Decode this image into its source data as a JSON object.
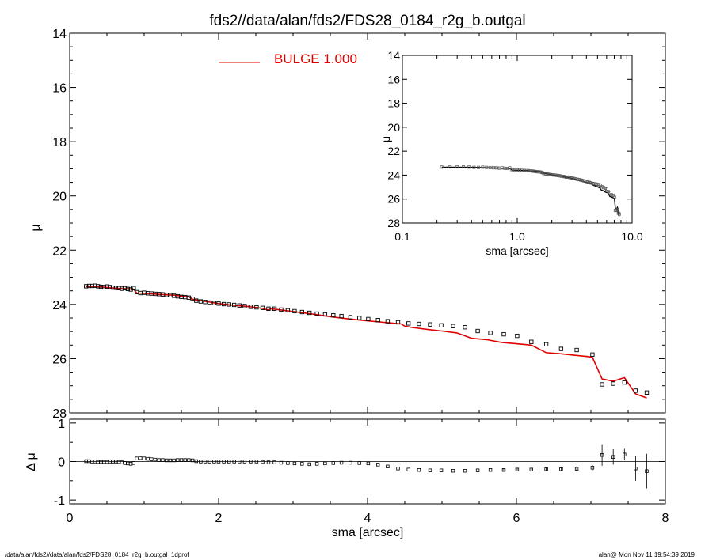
{
  "footer": {
    "left": "/data/alan/fds2//data/alan/fds2/FDS28_0184_r2g_b.outgal_1dprof",
    "right": "alan@  Mon Nov 11 19:54:39 2019"
  },
  "colors": {
    "model": "#e00000",
    "data": "#000000",
    "frame": "#000000"
  },
  "chart_data": [
    {
      "id": "main",
      "type": "scatter",
      "title": "fds2//data/alan/fds2/FDS28_0184_r2g_b.outgal",
      "xlabel": "",
      "ylabel": "μ",
      "xlim": [
        0,
        8
      ],
      "ylim": [
        28,
        14
      ],
      "y_inverted": true,
      "yticks": [
        14,
        16,
        18,
        20,
        22,
        24,
        26,
        28
      ],
      "legend": {
        "label": "BULGE  1.000",
        "placement": "top-center"
      },
      "series": [
        {
          "kind": "points",
          "x": [
            0.22,
            0.26,
            0.3,
            0.34,
            0.38,
            0.42,
            0.46,
            0.5,
            0.54,
            0.58,
            0.62,
            0.66,
            0.7,
            0.74,
            0.78,
            0.82,
            0.86,
            0.9,
            0.95,
            1.0,
            1.05,
            1.1,
            1.15,
            1.2,
            1.25,
            1.3,
            1.35,
            1.4,
            1.45,
            1.5,
            1.55,
            1.6,
            1.65,
            1.7,
            1.76,
            1.82,
            1.88,
            1.94,
            2.0,
            2.07,
            2.14,
            2.21,
            2.28,
            2.35,
            2.43,
            2.51,
            2.59,
            2.67,
            2.75,
            2.84,
            2.93,
            3.02,
            3.12,
            3.22,
            3.32,
            3.43,
            3.54,
            3.65,
            3.77,
            3.89,
            4.01,
            4.14,
            4.27,
            4.41,
            4.55,
            4.69,
            4.84,
            4.99,
            5.15,
            5.31,
            5.48,
            5.65,
            5.83,
            6.01,
            6.2,
            6.4,
            6.6,
            6.81,
            7.02,
            7.15,
            7.3,
            7.45,
            7.6,
            7.75
          ],
          "y": [
            23.33,
            23.32,
            23.32,
            23.31,
            23.33,
            23.35,
            23.36,
            23.34,
            23.36,
            23.38,
            23.39,
            23.4,
            23.42,
            23.4,
            23.43,
            23.45,
            23.4,
            23.55,
            23.58,
            23.57,
            23.59,
            23.6,
            23.61,
            23.62,
            23.63,
            23.65,
            23.66,
            23.68,
            23.7,
            23.72,
            23.73,
            23.75,
            23.79,
            23.86,
            23.89,
            23.91,
            23.93,
            23.95,
            23.97,
            23.99,
            24.0,
            24.02,
            24.04,
            24.06,
            24.09,
            24.11,
            24.13,
            24.16,
            24.16,
            24.19,
            24.22,
            24.25,
            24.28,
            24.31,
            24.34,
            24.37,
            24.4,
            24.43,
            24.47,
            24.5,
            24.54,
            24.58,
            24.62,
            24.66,
            24.7,
            24.72,
            24.74,
            24.77,
            24.8,
            24.84,
            24.98,
            25.05,
            25.1,
            25.16,
            25.38,
            25.47,
            25.64,
            25.68,
            25.85,
            26.95,
            26.92,
            26.88,
            27.18,
            27.25
          ],
          "yerr": [
            0.01,
            0.01,
            0.01,
            0.01,
            0.01,
            0.01,
            0.01,
            0.01,
            0.01,
            0.01,
            0.01,
            0.01,
            0.01,
            0.01,
            0.01,
            0.01,
            0.01,
            0.01,
            0.01,
            0.01,
            0.01,
            0.01,
            0.01,
            0.01,
            0.01,
            0.01,
            0.01,
            0.01,
            0.01,
            0.01,
            0.01,
            0.01,
            0.01,
            0.01,
            0.01,
            0.01,
            0.01,
            0.01,
            0.01,
            0.01,
            0.01,
            0.01,
            0.01,
            0.01,
            0.01,
            0.01,
            0.01,
            0.01,
            0.01,
            0.01,
            0.01,
            0.01,
            0.01,
            0.01,
            0.01,
            0.01,
            0.01,
            0.01,
            0.01,
            0.01,
            0.01,
            0.01,
            0.01,
            0.01,
            0.01,
            0.01,
            0.01,
            0.01,
            0.02,
            0.02,
            0.02,
            0.02,
            0.02,
            0.02,
            0.02,
            0.02,
            0.03,
            0.03,
            0.04,
            0.25,
            0.18,
            0.12,
            0.3,
            0.45
          ]
        },
        {
          "kind": "line",
          "name": "BULGE  1.000",
          "color": "#e00000",
          "x": [
            0.22,
            0.4,
            0.6,
            0.86,
            0.9,
            1.0,
            1.2,
            1.4,
            1.6,
            1.66,
            1.8,
            2.0,
            2.2,
            2.4,
            2.6,
            2.66,
            2.7,
            2.9,
            3.1,
            3.3,
            3.5,
            3.7,
            3.9,
            4.1,
            4.3,
            4.45,
            4.5,
            4.6,
            4.8,
            5.0,
            5.2,
            5.4,
            5.6,
            5.8,
            6.0,
            6.2,
            6.4,
            6.6,
            6.8,
            6.95,
            7.02,
            7.15,
            7.3,
            7.45,
            7.6,
            7.75
          ],
          "y": [
            23.34,
            23.35,
            23.4,
            23.44,
            23.58,
            23.59,
            23.63,
            23.66,
            23.72,
            23.82,
            23.88,
            23.97,
            24.03,
            24.08,
            24.15,
            24.21,
            24.16,
            24.23,
            24.3,
            24.37,
            24.45,
            24.52,
            24.58,
            24.63,
            24.68,
            24.72,
            24.8,
            24.85,
            24.92,
            24.98,
            25.05,
            25.25,
            25.3,
            25.4,
            25.45,
            25.5,
            25.78,
            25.82,
            25.88,
            25.92,
            25.95,
            26.75,
            26.83,
            26.7,
            27.3,
            27.45
          ]
        }
      ]
    },
    {
      "id": "residual",
      "type": "scatter",
      "xlabel": "sma [arcsec]",
      "ylabel": "Δ μ",
      "xlim": [
        0,
        8
      ],
      "ylim": [
        -1.1,
        1.1
      ],
      "xticks": [
        0,
        2,
        4,
        6,
        8
      ],
      "yticks": [
        -1,
        0,
        1
      ],
      "series": [
        {
          "kind": "points",
          "x": [
            0.22,
            0.26,
            0.3,
            0.34,
            0.38,
            0.42,
            0.46,
            0.5,
            0.54,
            0.58,
            0.62,
            0.66,
            0.7,
            0.74,
            0.78,
            0.82,
            0.86,
            0.9,
            0.95,
            1.0,
            1.05,
            1.1,
            1.15,
            1.2,
            1.25,
            1.3,
            1.35,
            1.4,
            1.45,
            1.5,
            1.55,
            1.6,
            1.65,
            1.7,
            1.76,
            1.82,
            1.88,
            1.94,
            2.0,
            2.07,
            2.14,
            2.21,
            2.28,
            2.35,
            2.43,
            2.51,
            2.59,
            2.67,
            2.75,
            2.84,
            2.93,
            3.02,
            3.12,
            3.22,
            3.32,
            3.43,
            3.54,
            3.65,
            3.77,
            3.89,
            4.01,
            4.14,
            4.27,
            4.41,
            4.55,
            4.69,
            4.84,
            4.99,
            5.15,
            5.31,
            5.48,
            5.65,
            5.83,
            6.01,
            6.2,
            6.4,
            6.6,
            6.81,
            7.02,
            7.15,
            7.3,
            7.45,
            7.6,
            7.75
          ],
          "y": [
            0.01,
            0.01,
            0.0,
            0.0,
            -0.01,
            -0.01,
            -0.01,
            -0.01,
            0.0,
            0.0,
            0.0,
            -0.01,
            -0.02,
            -0.04,
            -0.05,
            -0.06,
            -0.04,
            0.08,
            0.09,
            0.08,
            0.07,
            0.06,
            0.05,
            0.04,
            0.04,
            0.03,
            0.03,
            0.03,
            0.04,
            0.04,
            0.04,
            0.04,
            0.03,
            0.01,
            0.0,
            0.0,
            0.0,
            0.0,
            0.0,
            0.0,
            0.0,
            0.0,
            0.0,
            0.0,
            0.0,
            0.0,
            -0.01,
            -0.02,
            -0.02,
            -0.03,
            -0.04,
            -0.05,
            -0.06,
            -0.07,
            -0.06,
            -0.05,
            -0.04,
            -0.03,
            -0.03,
            -0.04,
            -0.05,
            -0.08,
            -0.13,
            -0.18,
            -0.21,
            -0.22,
            -0.23,
            -0.23,
            -0.24,
            -0.24,
            -0.23,
            -0.22,
            -0.22,
            -0.21,
            -0.21,
            -0.2,
            -0.2,
            -0.19,
            -0.16,
            0.17,
            0.12,
            0.18,
            -0.18,
            -0.25
          ],
          "yerr": [
            0.01,
            0.01,
            0.01,
            0.01,
            0.01,
            0.01,
            0.01,
            0.01,
            0.01,
            0.01,
            0.01,
            0.01,
            0.01,
            0.01,
            0.01,
            0.01,
            0.01,
            0.01,
            0.01,
            0.01,
            0.01,
            0.01,
            0.01,
            0.01,
            0.01,
            0.01,
            0.01,
            0.01,
            0.01,
            0.01,
            0.01,
            0.01,
            0.01,
            0.01,
            0.01,
            0.01,
            0.01,
            0.01,
            0.01,
            0.01,
            0.01,
            0.01,
            0.01,
            0.01,
            0.01,
            0.01,
            0.01,
            0.01,
            0.01,
            0.01,
            0.01,
            0.01,
            0.01,
            0.01,
            0.01,
            0.01,
            0.01,
            0.01,
            0.01,
            0.01,
            0.02,
            0.02,
            0.02,
            0.02,
            0.02,
            0.02,
            0.03,
            0.03,
            0.03,
            0.03,
            0.03,
            0.03,
            0.04,
            0.04,
            0.04,
            0.04,
            0.05,
            0.06,
            0.07,
            0.28,
            0.2,
            0.15,
            0.32,
            0.45
          ]
        }
      ]
    },
    {
      "id": "inset",
      "type": "scatter",
      "xlabel": "sma [arcsec]",
      "ylabel": "μ",
      "xscale": "log",
      "xlim": [
        0.1,
        10.0
      ],
      "ylim": [
        28,
        14
      ],
      "y_inverted": true,
      "xticks": [
        0.1,
        1.0,
        10.0
      ],
      "xticklabels": [
        "0.1",
        "1.0",
        "10.0"
      ],
      "yticks": [
        14,
        16,
        18,
        20,
        22,
        24,
        26,
        28
      ],
      "yticklabels": [
        "14",
        "16",
        "18",
        "20",
        "22",
        "24",
        "26",
        "28"
      ],
      "series": [
        {
          "kind": "points",
          "x": [
            0.22,
            0.26,
            0.3,
            0.34,
            0.38,
            0.42,
            0.46,
            0.5,
            0.54,
            0.58,
            0.62,
            0.66,
            0.7,
            0.74,
            0.78,
            0.82,
            0.86,
            0.9,
            0.95,
            1.0,
            1.05,
            1.1,
            1.15,
            1.2,
            1.25,
            1.3,
            1.35,
            1.4,
            1.45,
            1.5,
            1.55,
            1.6,
            1.65,
            1.7,
            1.76,
            1.82,
            1.88,
            1.94,
            2.0,
            2.07,
            2.14,
            2.21,
            2.28,
            2.35,
            2.43,
            2.51,
            2.59,
            2.67,
            2.75,
            2.84,
            2.93,
            3.02,
            3.12,
            3.22,
            3.32,
            3.43,
            3.54,
            3.65,
            3.77,
            3.89,
            4.01,
            4.14,
            4.27,
            4.41,
            4.55,
            4.69,
            4.84,
            4.99,
            5.15,
            5.31,
            5.48,
            5.65,
            5.83,
            6.01,
            6.2,
            6.4,
            6.6,
            6.81,
            7.02,
            7.15,
            7.3,
            7.45,
            7.6,
            7.75
          ],
          "y": [
            23.33,
            23.32,
            23.32,
            23.31,
            23.33,
            23.35,
            23.36,
            23.34,
            23.36,
            23.38,
            23.39,
            23.4,
            23.42,
            23.4,
            23.43,
            23.45,
            23.4,
            23.55,
            23.58,
            23.57,
            23.59,
            23.6,
            23.61,
            23.62,
            23.63,
            23.65,
            23.66,
            23.68,
            23.7,
            23.72,
            23.73,
            23.75,
            23.79,
            23.86,
            23.89,
            23.91,
            23.93,
            23.95,
            23.97,
            23.99,
            24.0,
            24.02,
            24.04,
            24.06,
            24.09,
            24.11,
            24.13,
            24.16,
            24.16,
            24.19,
            24.22,
            24.25,
            24.28,
            24.31,
            24.34,
            24.37,
            24.4,
            24.43,
            24.47,
            24.5,
            24.54,
            24.58,
            24.62,
            24.66,
            24.7,
            24.72,
            24.74,
            24.77,
            24.8,
            24.84,
            24.98,
            25.05,
            25.1,
            25.16,
            25.38,
            25.47,
            25.64,
            25.68,
            25.85,
            26.95,
            26.92,
            26.88,
            27.18,
            27.25
          ]
        },
        {
          "kind": "line",
          "color": "#000000",
          "x": [
            0.22,
            0.4,
            0.6,
            0.86,
            0.9,
            1.0,
            1.2,
            1.4,
            1.6,
            1.66,
            1.8,
            2.0,
            2.2,
            2.4,
            2.6,
            2.66,
            2.7,
            2.9,
            3.1,
            3.3,
            3.5,
            3.7,
            3.9,
            4.1,
            4.3,
            4.45,
            4.5,
            4.6,
            4.8,
            5.0,
            5.2,
            5.4,
            5.6,
            5.8,
            6.0,
            6.2,
            6.4,
            6.6,
            6.8,
            6.95,
            7.02,
            7.15,
            7.3,
            7.45,
            7.6,
            7.75
          ],
          "y": [
            23.34,
            23.35,
            23.4,
            23.44,
            23.58,
            23.59,
            23.63,
            23.66,
            23.72,
            23.82,
            23.88,
            23.97,
            24.03,
            24.08,
            24.15,
            24.21,
            24.16,
            24.23,
            24.3,
            24.37,
            24.45,
            24.52,
            24.58,
            24.63,
            24.68,
            24.72,
            24.8,
            24.85,
            24.92,
            24.98,
            25.05,
            25.25,
            25.3,
            25.4,
            25.45,
            25.5,
            25.78,
            25.82,
            25.88,
            25.92,
            25.95,
            26.75,
            26.83,
            26.7,
            27.3,
            27.45
          ]
        }
      ]
    }
  ]
}
